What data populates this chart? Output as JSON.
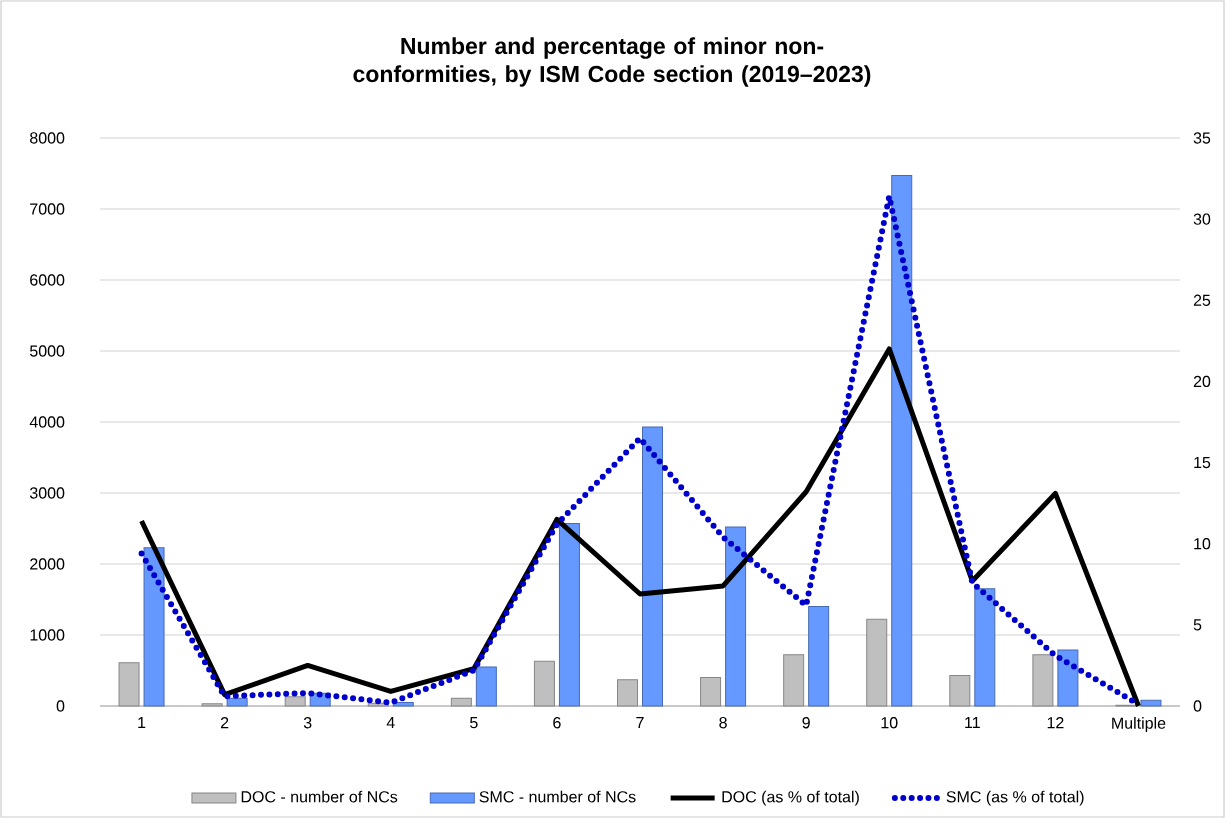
{
  "chart_data": {
    "type": "bar",
    "title": "Number and percentage of minor non-conformities, by ISM Code section (2019–2023)",
    "categories": [
      "1",
      "2",
      "3",
      "4",
      "5",
      "6",
      "7",
      "8",
      "9",
      "10",
      "11",
      "12",
      "Multiple"
    ],
    "series": [
      {
        "name": "DOC - number of NCs",
        "type": "bar",
        "color": "#bfbfbf",
        "values": [
          610,
          30,
          130,
          40,
          110,
          630,
          370,
          400,
          720,
          1220,
          430,
          720,
          10
        ]
      },
      {
        "name": "SMC - number of NCs",
        "type": "bar",
        "color": "#6699ff",
        "values": [
          2230,
          110,
          180,
          50,
          550,
          2570,
          3930,
          2520,
          1400,
          7470,
          1650,
          790,
          80
        ]
      },
      {
        "name": "DOC (as % of total)",
        "type": "line",
        "axis": "y2",
        "color": "#000000",
        "line_style": "solid",
        "values": [
          11.4,
          0.7,
          2.5,
          0.9,
          2.3,
          11.5,
          6.9,
          7.4,
          13.2,
          22.0,
          7.7,
          13.1,
          0
        ]
      },
      {
        "name": "SMC (as % of total)",
        "type": "line",
        "axis": "y2",
        "color": "#0000cc",
        "line_style": "dotted",
        "values": [
          9.4,
          0.6,
          0.8,
          0.2,
          2.2,
          11.2,
          16.5,
          10.4,
          6.2,
          31.4,
          7.6,
          3.1,
          0.1
        ]
      }
    ],
    "ylim": [
      0,
      8000
    ],
    "yticks": [
      0,
      1000,
      2000,
      3000,
      4000,
      5000,
      6000,
      7000,
      8000
    ],
    "y2lim": [
      0,
      35
    ],
    "y2ticks": [
      0,
      5,
      10,
      15,
      20,
      25,
      30,
      35
    ],
    "grid": "y",
    "legend": "bottom",
    "marker": "none"
  }
}
